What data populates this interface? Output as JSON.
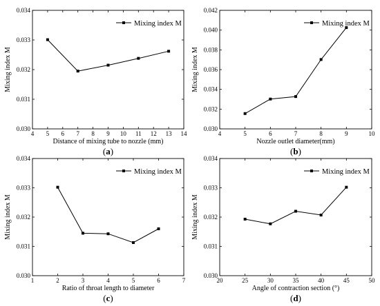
{
  "chart_data": [
    {
      "type": "line",
      "panel": "(a)",
      "panel_open": "(",
      "panel_letter": "a",
      "panel_close": ")",
      "xlabel": "Distance of mixing tube to nozzle (mm)",
      "ylabel": "Mixing index M",
      "xlim": [
        4,
        14
      ],
      "ylim": [
        0.03,
        0.034
      ],
      "xticks": [
        "4",
        "5",
        "6",
        "7",
        "8",
        "9",
        "10",
        "11",
        "12",
        "13",
        "14"
      ],
      "yticks": [
        "0.030",
        "0.031",
        "0.032",
        "0.033",
        "0.034"
      ],
      "legend": "Mixing index M",
      "legend_position": "top-right",
      "x": [
        5,
        7,
        9,
        11,
        13
      ],
      "y": [
        0.03301,
        0.03195,
        0.03215,
        0.03238,
        0.03262
      ]
    },
    {
      "type": "line",
      "panel": "(b)",
      "panel_open": "(",
      "panel_letter": "b",
      "panel_close": ")",
      "xlabel": "Nozzle outlet diameter(mm)",
      "ylabel": "Mixing index M",
      "xlim": [
        4,
        10
      ],
      "ylim": [
        0.03,
        0.042
      ],
      "xticks": [
        "4",
        "5",
        "6",
        "7",
        "8",
        "9",
        "10"
      ],
      "yticks": [
        "0.030",
        "0.032",
        "0.034",
        "0.036",
        "0.038",
        "0.040",
        "0.042"
      ],
      "legend": "Mixing index M",
      "legend_position": "top-right",
      "x": [
        5,
        6,
        7,
        8,
        9
      ],
      "y": [
        0.03155,
        0.03302,
        0.03327,
        0.03702,
        0.04025
      ]
    },
    {
      "type": "line",
      "panel": "(c)",
      "panel_open": "(",
      "panel_letter": "c",
      "panel_close": ")",
      "xlabel": "Ratio of throat length to diameter",
      "ylabel": "Mixing index M",
      "xlim": [
        1,
        7
      ],
      "ylim": [
        0.03,
        0.034
      ],
      "xticks": [
        "1",
        "2",
        "3",
        "4",
        "5",
        "6",
        "7"
      ],
      "yticks": [
        "0.030",
        "0.031",
        "0.032",
        "0.033",
        "0.034"
      ],
      "legend": "Mixing index M",
      "legend_position": "top-right",
      "x": [
        2,
        3,
        4,
        5,
        6
      ],
      "y": [
        0.03302,
        0.03145,
        0.03143,
        0.03113,
        0.0316
      ]
    },
    {
      "type": "line",
      "panel": "(d)",
      "panel_open": "(",
      "panel_letter": "d",
      "panel_close": ")",
      "xlabel": "Angle of contraction section (°)",
      "ylabel": "Mixing index M",
      "xlim": [
        20,
        50
      ],
      "ylim": [
        0.03,
        0.034
      ],
      "xticks": [
        "20",
        "25",
        "30",
        "35",
        "40",
        "45",
        "50"
      ],
      "yticks": [
        "0.030",
        "0.031",
        "0.032",
        "0.033",
        "0.034"
      ],
      "legend": "Mixing index M",
      "legend_position": "top-right",
      "x": [
        25,
        30,
        35,
        40,
        45
      ],
      "y": [
        0.03193,
        0.03177,
        0.0322,
        0.03207,
        0.03302
      ]
    }
  ]
}
